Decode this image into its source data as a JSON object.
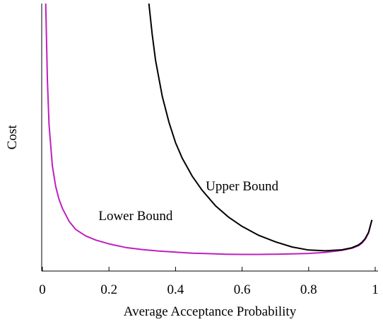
{
  "chart_data": {
    "type": "line",
    "xlabel": "Average Acceptance Probability",
    "ylabel": "Cost",
    "xlim": [
      0,
      1
    ],
    "ylim": [
      0,
      100
    ],
    "grid": false,
    "x_ticks": [
      "0",
      "0.2",
      "0.4",
      "0.6",
      "0.8",
      "1"
    ],
    "x_tick_values": [
      0,
      0.2,
      0.4,
      0.6,
      0.8,
      1
    ],
    "y_ticks": [],
    "series": [
      {
        "name": "Lower Bound",
        "color": "#bf1fbf",
        "x": [
          0.01,
          0.015,
          0.02,
          0.03,
          0.04,
          0.05,
          0.06,
          0.08,
          0.1,
          0.13,
          0.16,
          0.2,
          0.25,
          0.3,
          0.35,
          0.4,
          0.45,
          0.5,
          0.55,
          0.6,
          0.65,
          0.7,
          0.75,
          0.8,
          0.85,
          0.9,
          0.93,
          0.95,
          0.96,
          0.97,
          0.98,
          0.99
        ],
        "y": [
          100,
          70,
          53,
          37,
          29,
          24,
          20.5,
          15.5,
          12.3,
          9.8,
          8.2,
          6.7,
          5.3,
          4.5,
          3.9,
          3.5,
          3.1,
          2.9,
          2.7,
          2.6,
          2.6,
          2.7,
          2.8,
          3.0,
          3.4,
          4.2,
          5.0,
          6.0,
          7.0,
          8.5,
          11,
          16
        ]
      },
      {
        "name": "Upper Bound",
        "color": "#000000",
        "x": [
          0.32,
          0.33,
          0.34,
          0.36,
          0.38,
          0.4,
          0.42,
          0.45,
          0.48,
          0.52,
          0.56,
          0.6,
          0.65,
          0.7,
          0.75,
          0.8,
          0.85,
          0.9,
          0.93,
          0.95,
          0.96,
          0.97,
          0.98,
          0.99
        ],
        "y": [
          100,
          88,
          78,
          64,
          54,
          46,
          40,
          33,
          27.5,
          21.5,
          17,
          13.5,
          10,
          7.5,
          5.5,
          4.3,
          4.0,
          4.4,
          5.2,
          6.3,
          7.3,
          8.8,
          11.2,
          16
        ]
      }
    ],
    "annotations": [
      {
        "text": "Upper Bound",
        "x": 0.6,
        "y": 27.5,
        "color": "#000000"
      },
      {
        "text": "Lower Bound",
        "x": 0.28,
        "y": 16,
        "color": "#bf1fbf"
      }
    ]
  }
}
